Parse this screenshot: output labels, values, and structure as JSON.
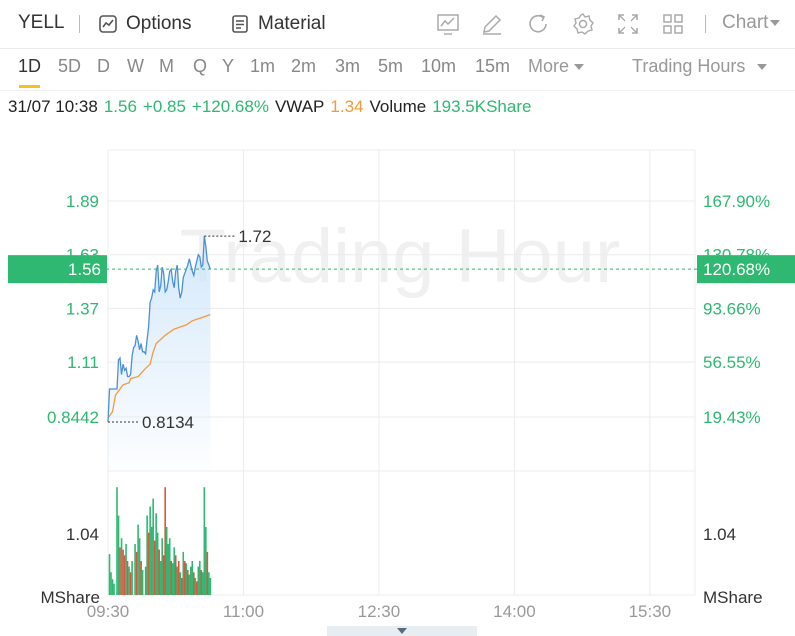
{
  "header": {
    "ticker": "YELL",
    "options_label": "Options",
    "material_label": "Material",
    "chart_label": "Chart",
    "icons": [
      "indicator-icon",
      "draw-icon",
      "refresh-icon",
      "settings-icon",
      "fullscreen-icon",
      "layout-icon"
    ]
  },
  "periods": {
    "items": [
      "1D",
      "5D",
      "D",
      "W",
      "M",
      "Q",
      "Y",
      "1m",
      "2m",
      "3m",
      "5m",
      "10m",
      "15m"
    ],
    "active": "1D",
    "more_label": "More",
    "trading_hours_label": "Trading Hours"
  },
  "info": {
    "datetime": "31/07 10:38",
    "price": "1.56",
    "change": "+0.85",
    "change_pct": "+120.68%",
    "vwap_label": "VWAP",
    "vwap": "1.34",
    "volume_label": "Volume",
    "volume": "193.5KShare"
  },
  "colors": {
    "up": "#2eb871",
    "down": "#e0533f",
    "price_line": "#4a90d9",
    "vwap_line": "#f39a3d",
    "grid": "#ececec",
    "watermark": "#f0f0f0"
  },
  "chart_data": {
    "type": "line",
    "watermark": "Trading Hour",
    "xlabel": "",
    "ylabel": "",
    "x_ticks": [
      "09:30",
      "11:00",
      "12:30",
      "14:00",
      "15:30"
    ],
    "x_range": [
      "09:30",
      "16:00"
    ],
    "y_left_ticks": [
      "1.89",
      "1.63",
      "1.37",
      "1.11",
      "0.8442"
    ],
    "y_right_ticks": [
      "167.90%",
      "130.78%",
      "93.66%",
      "56.55%",
      "19.43%"
    ],
    "ylim": [
      0.8442,
      1.89
    ],
    "current_price_label": "1.56",
    "current_pct_label": "120.68%",
    "high_label": "1.72",
    "low_label": "0.8134",
    "volume_axis_label": "1.04",
    "volume_unit": "MShare",
    "series": [
      {
        "name": "",
        "x": [
          "09:30",
          "09:31",
          "09:32",
          "09:33",
          "09:34",
          "09:35",
          "09:36",
          "09:37",
          "09:38",
          "09:39",
          "09:40",
          "09:41",
          "09:42",
          "09:43",
          "09:44",
          "09:45",
          "09:46",
          "09:47",
          "09:48",
          "09:49",
          "09:50",
          "09:51",
          "09:52",
          "09:53",
          "09:54",
          "09:55",
          "09:56",
          "09:57",
          "09:58",
          "09:59",
          "10:00",
          "10:01",
          "10:02",
          "10:03",
          "10:04",
          "10:05",
          "10:06",
          "10:07",
          "10:08",
          "10:09",
          "10:10",
          "10:11",
          "10:12",
          "10:13",
          "10:14",
          "10:15",
          "10:16",
          "10:17",
          "10:18",
          "10:19",
          "10:20",
          "10:21",
          "10:22",
          "10:23",
          "10:24",
          "10:25",
          "10:26",
          "10:27",
          "10:28",
          "10:29",
          "10:30",
          "10:31",
          "10:32",
          "10:33",
          "10:34",
          "10:35",
          "10:36",
          "10:37",
          "10:38"
        ],
        "values": [
          0.82,
          0.98,
          0.98,
          0.98,
          0.98,
          0.98,
          0.98,
          1.12,
          1.13,
          1.05,
          1.1,
          1.07,
          1.08,
          1.04,
          1.04,
          1.05,
          1.14,
          1.18,
          1.19,
          1.24,
          1.21,
          1.17,
          1.2,
          1.16,
          1.16,
          1.15,
          1.22,
          1.28,
          1.4,
          1.42,
          1.46,
          1.45,
          1.55,
          1.58,
          1.45,
          1.48,
          1.57,
          1.54,
          1.45,
          1.46,
          1.5,
          1.55,
          1.56,
          1.5,
          1.47,
          1.55,
          1.58,
          1.47,
          1.42,
          1.45,
          1.52,
          1.54,
          1.56,
          1.58,
          1.61,
          1.58,
          1.55,
          1.53,
          1.57,
          1.6,
          1.63,
          1.62,
          1.57,
          1.58,
          1.72,
          1.67,
          1.6,
          1.58,
          1.56
        ]
      },
      {
        "name": "VWAP",
        "x": [
          "09:30",
          "09:33",
          "09:35",
          "09:38",
          "09:40",
          "09:44",
          "09:45",
          "09:50",
          "09:55",
          "09:58",
          "10:00",
          "10:02",
          "10:05",
          "10:08",
          "10:10",
          "10:14",
          "10:18",
          "10:22",
          "10:26",
          "10:30",
          "10:34",
          "10:38"
        ],
        "values": [
          0.84,
          0.87,
          0.95,
          0.98,
          1.0,
          1.01,
          1.03,
          1.04,
          1.08,
          1.1,
          1.16,
          1.2,
          1.22,
          1.24,
          1.25,
          1.27,
          1.28,
          1.29,
          1.31,
          1.32,
          1.33,
          1.34
        ]
      }
    ],
    "volume_bars": [
      {
        "t": "09:31",
        "v": 0.36,
        "dir": "up"
      },
      {
        "t": "09:32",
        "v": 0.2,
        "dir": "up"
      },
      {
        "t": "09:33",
        "v": 0.14,
        "dir": "up"
      },
      {
        "t": "09:34",
        "v": 0.1,
        "dir": "up"
      },
      {
        "t": "09:36",
        "v": 0.95,
        "dir": "up"
      },
      {
        "t": "09:37",
        "v": 0.7,
        "dir": "up"
      },
      {
        "t": "09:38",
        "v": 0.42,
        "dir": "down"
      },
      {
        "t": "09:39",
        "v": 0.5,
        "dir": "up"
      },
      {
        "t": "09:40",
        "v": 0.4,
        "dir": "down"
      },
      {
        "t": "09:41",
        "v": 0.35,
        "dir": "down"
      },
      {
        "t": "09:42",
        "v": 0.45,
        "dir": "up"
      },
      {
        "t": "09:43",
        "v": 0.3,
        "dir": "down"
      },
      {
        "t": "09:44",
        "v": 0.25,
        "dir": "up"
      },
      {
        "t": "09:45",
        "v": 0.2,
        "dir": "down"
      },
      {
        "t": "09:46",
        "v": 0.3,
        "dir": "up"
      },
      {
        "t": "09:48",
        "v": 0.45,
        "dir": "up"
      },
      {
        "t": "09:49",
        "v": 0.38,
        "dir": "down"
      },
      {
        "t": "09:50",
        "v": 0.62,
        "dir": "up"
      },
      {
        "t": "09:51",
        "v": 0.5,
        "dir": "up"
      },
      {
        "t": "09:52",
        "v": 0.3,
        "dir": "down"
      },
      {
        "t": "09:53",
        "v": 0.22,
        "dir": "up"
      },
      {
        "t": "09:55",
        "v": 0.25,
        "dir": "up"
      },
      {
        "t": "09:56",
        "v": 0.7,
        "dir": "up"
      },
      {
        "t": "09:57",
        "v": 0.55,
        "dir": "down"
      },
      {
        "t": "09:58",
        "v": 0.78,
        "dir": "up"
      },
      {
        "t": "09:59",
        "v": 0.6,
        "dir": "up"
      },
      {
        "t": "10:00",
        "v": 0.85,
        "dir": "up"
      },
      {
        "t": "10:01",
        "v": 0.48,
        "dir": "down"
      },
      {
        "t": "10:02",
        "v": 0.72,
        "dir": "up"
      },
      {
        "t": "10:03",
        "v": 0.55,
        "dir": "up"
      },
      {
        "t": "10:04",
        "v": 0.4,
        "dir": "down"
      },
      {
        "t": "10:05",
        "v": 0.3,
        "dir": "up"
      },
      {
        "t": "10:06",
        "v": 0.5,
        "dir": "up"
      },
      {
        "t": "10:07",
        "v": 0.35,
        "dir": "down"
      },
      {
        "t": "10:08",
        "v": 0.95,
        "dir": "down"
      },
      {
        "t": "10:09",
        "v": 0.6,
        "dir": "up"
      },
      {
        "t": "10:10",
        "v": 0.45,
        "dir": "up"
      },
      {
        "t": "10:11",
        "v": 0.5,
        "dir": "up"
      },
      {
        "t": "10:12",
        "v": 0.3,
        "dir": "down"
      },
      {
        "t": "10:13",
        "v": 0.28,
        "dir": "up"
      },
      {
        "t": "10:14",
        "v": 0.42,
        "dir": "up"
      },
      {
        "t": "10:15",
        "v": 0.35,
        "dir": "down"
      },
      {
        "t": "10:16",
        "v": 0.25,
        "dir": "up"
      },
      {
        "t": "10:17",
        "v": 0.3,
        "dir": "down"
      },
      {
        "t": "10:18",
        "v": 0.2,
        "dir": "up"
      },
      {
        "t": "10:19",
        "v": 0.15,
        "dir": "down"
      },
      {
        "t": "10:20",
        "v": 0.38,
        "dir": "up"
      },
      {
        "t": "10:21",
        "v": 0.3,
        "dir": "down"
      },
      {
        "t": "10:22",
        "v": 0.28,
        "dir": "up"
      },
      {
        "t": "10:23",
        "v": 0.22,
        "dir": "down"
      },
      {
        "t": "10:24",
        "v": 0.18,
        "dir": "up"
      },
      {
        "t": "10:25",
        "v": 0.25,
        "dir": "up"
      },
      {
        "t": "10:26",
        "v": 0.3,
        "dir": "up"
      },
      {
        "t": "10:27",
        "v": 0.2,
        "dir": "down"
      },
      {
        "t": "10:28",
        "v": 0.15,
        "dir": "up"
      },
      {
        "t": "10:29",
        "v": 0.12,
        "dir": "down"
      },
      {
        "t": "10:30",
        "v": 0.25,
        "dir": "up"
      },
      {
        "t": "10:31",
        "v": 0.3,
        "dir": "up"
      },
      {
        "t": "10:32",
        "v": 0.22,
        "dir": "down"
      },
      {
        "t": "10:33",
        "v": 0.2,
        "dir": "up"
      },
      {
        "t": "10:34",
        "v": 0.95,
        "dir": "up"
      },
      {
        "t": "10:35",
        "v": 0.6,
        "dir": "up"
      },
      {
        "t": "10:36",
        "v": 0.38,
        "dir": "down"
      },
      {
        "t": "10:37",
        "v": 0.2,
        "dir": "up"
      },
      {
        "t": "10:38",
        "v": 0.15,
        "dir": "up"
      }
    ]
  }
}
